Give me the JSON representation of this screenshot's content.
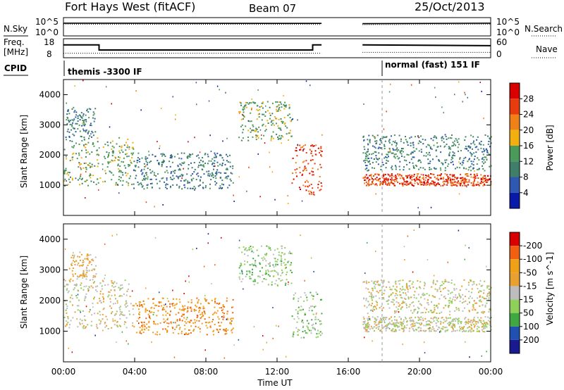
{
  "header": {
    "station": "Fort Hays West (fitACF)",
    "beam": "Beam 07",
    "date": "25/Oct/2013"
  },
  "labels": {
    "nsky": "N.Sky",
    "nsearch": "N.Search",
    "freq": "Freq.",
    "freq_unit": "[MHz]",
    "nave": "Nave",
    "cpid": "CPID",
    "cpid_1": "themis -3300 IF",
    "cpid_2": "normal (fast) 151 IF",
    "noise_left_ticks": [
      "10^5",
      "10^0"
    ],
    "noise_right_ticks": [
      "10^5",
      "10^0"
    ],
    "freq_left_ticks": [
      "18",
      "8"
    ],
    "freq_right_ticks": [
      "60",
      "0"
    ]
  },
  "colors": {
    "power": [
      "#0a1aa8",
      "#2f58b0",
      "#3f7f6a",
      "#4a9a5a",
      "#f2b010",
      "#f08018",
      "#e83c10",
      "#d80000"
    ],
    "velocity": [
      "#d80000",
      "#f06010",
      "#f0a018",
      "#e8a030",
      "#bdbdbd",
      "#8fd05a",
      "#3fa840",
      "#2050b0",
      "#1a1a90"
    ],
    "ground": "#bdbdbd"
  },
  "chart_data": [
    {
      "type": "line",
      "title": "N.Sky",
      "xlabel": "",
      "ylabel": "N.Sky",
      "x": [
        "00:00",
        "04:00",
        "08:00",
        "12:00",
        "16:00",
        "20:00",
        "00:00"
      ],
      "xlim_hours": [
        0,
        24
      ],
      "data_gap_hours": [
        14.5,
        16.8
      ],
      "scale": "log",
      "yticks": [
        "10^0",
        "10^5"
      ],
      "series": [
        {
          "name": "N.Sky",
          "x_hours": [
            0,
            14.5,
            16.8,
            24
          ],
          "values_log10": [
            4.2,
            4.1,
            4.0,
            4.2
          ]
        },
        {
          "name": "N.Search",
          "x_hours": [
            0,
            14.5,
            16.8,
            24
          ],
          "values_log10": [
            3.8,
            3.7,
            3.6,
            3.8
          ]
        }
      ]
    },
    {
      "type": "line",
      "title": "Freq.",
      "ylabel": "Freq. [MHz]",
      "ylim": [
        8,
        18
      ],
      "right_ylabel": "Nave",
      "right_ylim": [
        0,
        60
      ],
      "series": [
        {
          "name": "Freq.",
          "x_hours": [
            0,
            2.0,
            2.0,
            14.0,
            14.0,
            14.5,
            16.8,
            24
          ],
          "values": [
            15.9,
            15.9,
            11.9,
            11.9,
            15.9,
            15.9,
            15.9,
            15.3
          ]
        },
        {
          "name": "Nave",
          "x_hours": [
            0,
            14.5,
            16.8,
            24
          ],
          "values": [
            8,
            8,
            12,
            12
          ]
        }
      ]
    },
    {
      "type": "heatmap",
      "title": "Power",
      "xlabel": "",
      "ylabel": "Slant Range [km]",
      "xticks": [
        "00:00",
        "04:00",
        "08:00",
        "12:00",
        "16:00",
        "20:00",
        "00:00"
      ],
      "yticks": [
        "1000",
        "2000",
        "3000",
        "4000"
      ],
      "ylim": [
        0,
        4500
      ],
      "colorbar_label": "Power [dB]",
      "colorbar_ticks": [
        "4",
        "8",
        "12",
        "16",
        "20",
        "24",
        "28"
      ],
      "regions": [
        {
          "start": 0.0,
          "end": 3.9,
          "range_low": 1000,
          "range_high": 2600,
          "level": 3
        },
        {
          "start": 0.1,
          "end": 1.8,
          "range_low": 2600,
          "range_high": 3600,
          "level": 2
        },
        {
          "start": 3.9,
          "end": 9.5,
          "range_low": 900,
          "range_high": 2100,
          "level": 2
        },
        {
          "start": 9.8,
          "end": 12.8,
          "range_low": 2500,
          "range_high": 3800,
          "level": 3
        },
        {
          "start": 12.8,
          "end": 14.5,
          "range_low": 700,
          "range_high": 2400,
          "level": 6
        },
        {
          "start": 16.8,
          "end": 24.0,
          "range_low": 1000,
          "range_high": 1400,
          "level": 6
        },
        {
          "start": 16.8,
          "end": 24.0,
          "range_low": 1500,
          "range_high": 2700,
          "level": 2
        }
      ]
    },
    {
      "type": "heatmap",
      "title": "Velocity",
      "xlabel": "Time UT",
      "ylabel": "Slant Range [km]",
      "xticks": [
        "00:00",
        "04:00",
        "08:00",
        "12:00",
        "16:00",
        "20:00",
        "00:00"
      ],
      "yticks": [
        "1000",
        "2000",
        "3000",
        "4000"
      ],
      "ylim": [
        0,
        4500
      ],
      "colorbar_label": "Velocity [m s^-1]",
      "colorbar_ticks": [
        "200",
        "100",
        "50",
        "15",
        "-15",
        "-50",
        "-100",
        "-200"
      ],
      "regions": [
        {
          "start": 0.0,
          "end": 3.9,
          "range_low": 1100,
          "range_high": 2700,
          "level": 4
        },
        {
          "start": 0.3,
          "end": 1.8,
          "range_low": 2700,
          "range_high": 3600,
          "level": 3
        },
        {
          "start": 3.9,
          "end": 9.5,
          "range_low": 900,
          "range_high": 2100,
          "level": 2
        },
        {
          "start": 9.8,
          "end": 12.8,
          "range_low": 2500,
          "range_high": 3800,
          "level": 5
        },
        {
          "start": 12.8,
          "end": 14.5,
          "range_low": 800,
          "range_high": 2300,
          "level": 5
        },
        {
          "start": 16.8,
          "end": 24.0,
          "range_low": 1000,
          "range_high": 1500,
          "level": 4
        },
        {
          "start": 16.8,
          "end": 24.0,
          "range_low": 1600,
          "range_high": 2700,
          "level": 4
        }
      ]
    }
  ]
}
